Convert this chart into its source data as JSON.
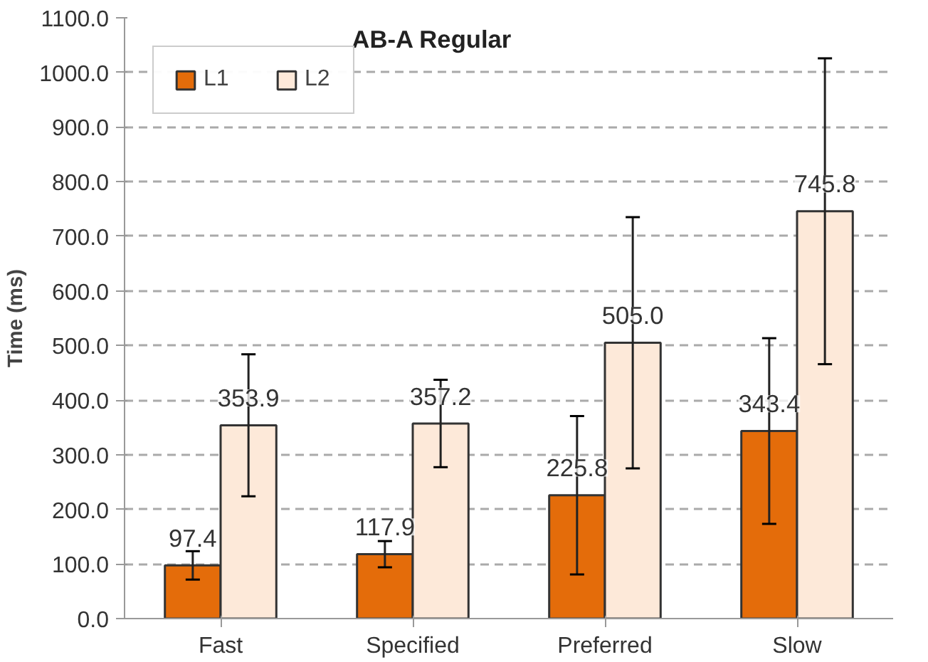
{
  "chart_data": {
    "type": "bar",
    "title": "AB-A Regular",
    "ylabel": "Time (ms)",
    "categories": [
      "Fast",
      "Specified",
      "Preferred",
      "Slow"
    ],
    "series": [
      {
        "name": "L1",
        "color": "#e46c0a",
        "values": [
          97.4,
          117.9,
          225.8,
          343.4
        ],
        "value_labels": [
          "97.4",
          "117.9",
          "225.8",
          "343.4"
        ],
        "errors": [
          26,
          24,
          145,
          170
        ]
      },
      {
        "name": "L2",
        "color": "#fde9d9",
        "values": [
          353.9,
          357.2,
          505.0,
          745.8
        ],
        "value_labels": [
          "353.9",
          "357.2",
          "505.0",
          "745.8"
        ],
        "errors": [
          130,
          80,
          230,
          280
        ]
      }
    ],
    "ylim": [
      0,
      1100
    ],
    "yticks": [
      {
        "value": 0,
        "label": "0.0"
      },
      {
        "value": 100,
        "label": "100.0"
      },
      {
        "value": 200,
        "label": "200.0"
      },
      {
        "value": 300,
        "label": "300.0"
      },
      {
        "value": 400,
        "label": "400.0"
      },
      {
        "value": 500,
        "label": "500.0"
      },
      {
        "value": 600,
        "label": "600.0"
      },
      {
        "value": 700,
        "label": "700.0"
      },
      {
        "value": 800,
        "label": "800.0"
      },
      {
        "value": 900,
        "label": "900.0"
      },
      {
        "value": 1000,
        "label": "1000.0"
      },
      {
        "value": 1100,
        "label": "1100.0"
      }
    ],
    "grid": "y",
    "legend": "top left"
  }
}
